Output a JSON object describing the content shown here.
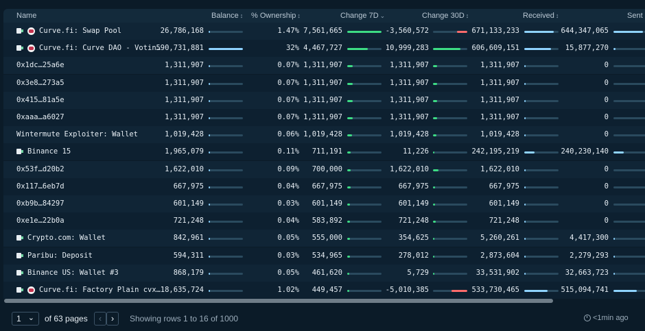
{
  "columns": {
    "name": "Name",
    "balance": "Balance",
    "ownership": "% Ownership",
    "change7d": "Change 7D",
    "change30d": "Change 30D",
    "received": "Received",
    "sent": "Sent"
  },
  "sort_icons": {
    "balance": "↕",
    "ownership": "↕",
    "change7d": "⌄",
    "change30d": "↕",
    "received": "↕"
  },
  "colors": {
    "positive": "#3ddc84",
    "negative": "#ff6b6b",
    "neutral": "#8fd3ff"
  },
  "rows": [
    {
      "name": "Curve.fi: Swap Pool",
      "tag": true,
      "curve": true,
      "balance": "26,786,168",
      "balance_frac": 0.045,
      "ownership": "1.47%",
      "change7d": "7,561,665",
      "c7_frac": 1.0,
      "c7_sign": "pos",
      "change30d": "-3,560,572",
      "c30_frac": 0.3,
      "c30_sign": "neg",
      "received": "671,133,233",
      "rec_frac": 0.85,
      "sent": "644,347,065",
      "sent_frac": 0.85
    },
    {
      "name": "Curve.fi: Curve DAO - Votin…",
      "tag": true,
      "curve": true,
      "balance": "590,731,881",
      "balance_frac": 1.0,
      "ownership": "32%",
      "change7d": "4,467,727",
      "c7_frac": 0.6,
      "c7_sign": "pos",
      "change30d": "10,999,283",
      "c30_frac": 0.8,
      "c30_sign": "pos",
      "received": "606,609,151",
      "rec_frac": 0.77,
      "sent": "15,877,270",
      "sent_frac": 0.06
    },
    {
      "name": "0x1dc…25a6e",
      "tag": false,
      "curve": false,
      "balance": "1,311,907",
      "balance_frac": 0.02,
      "ownership": "0.07%",
      "change7d": "1,311,907",
      "c7_frac": 0.16,
      "c7_sign": "pos",
      "change30d": "1,311,907",
      "c30_frac": 0.12,
      "c30_sign": "pos",
      "received": "1,311,907",
      "rec_frac": 0.01,
      "sent": "0",
      "sent_frac": 0
    },
    {
      "name": "0x3e8…273a5",
      "tag": false,
      "curve": false,
      "balance": "1,311,907",
      "balance_frac": 0.02,
      "ownership": "0.07%",
      "change7d": "1,311,907",
      "c7_frac": 0.16,
      "c7_sign": "pos",
      "change30d": "1,311,907",
      "c30_frac": 0.12,
      "c30_sign": "pos",
      "received": "1,311,907",
      "rec_frac": 0.01,
      "sent": "0",
      "sent_frac": 0
    },
    {
      "name": "0x415…81a5e",
      "tag": false,
      "curve": false,
      "balance": "1,311,907",
      "balance_frac": 0.02,
      "ownership": "0.07%",
      "change7d": "1,311,907",
      "c7_frac": 0.16,
      "c7_sign": "pos",
      "change30d": "1,311,907",
      "c30_frac": 0.12,
      "c30_sign": "pos",
      "received": "1,311,907",
      "rec_frac": 0.01,
      "sent": "0",
      "sent_frac": 0
    },
    {
      "name": "0xaaa…a6027",
      "tag": false,
      "curve": false,
      "balance": "1,311,907",
      "balance_frac": 0.02,
      "ownership": "0.07%",
      "change7d": "1,311,907",
      "c7_frac": 0.16,
      "c7_sign": "pos",
      "change30d": "1,311,907",
      "c30_frac": 0.12,
      "c30_sign": "pos",
      "received": "1,311,907",
      "rec_frac": 0.01,
      "sent": "0",
      "sent_frac": 0
    },
    {
      "name": "Wintermute Exploiter: Wallet",
      "tag": false,
      "curve": false,
      "balance": "1,019,428",
      "balance_frac": 0.015,
      "ownership": "0.06%",
      "change7d": "1,019,428",
      "c7_frac": 0.13,
      "c7_sign": "pos",
      "change30d": "1,019,428",
      "c30_frac": 0.1,
      "c30_sign": "pos",
      "received": "1,019,428",
      "rec_frac": 0.01,
      "sent": "0",
      "sent_frac": 0
    },
    {
      "name": "Binance 15",
      "tag": true,
      "curve": false,
      "balance": "1,965,079",
      "balance_frac": 0.03,
      "ownership": "0.11%",
      "change7d": "711,191",
      "c7_frac": 0.1,
      "c7_sign": "pos",
      "change30d": "11,226",
      "c30_frac": 0.01,
      "c30_sign": "pos",
      "received": "242,195,219",
      "rec_frac": 0.3,
      "sent": "240,230,140",
      "sent_frac": 0.3
    },
    {
      "name": "0x53f…d20b2",
      "tag": false,
      "curve": false,
      "balance": "1,622,010",
      "balance_frac": 0.025,
      "ownership": "0.09%",
      "change7d": "700,000",
      "c7_frac": 0.1,
      "c7_sign": "pos",
      "change30d": "1,622,010",
      "c30_frac": 0.15,
      "c30_sign": "pos",
      "received": "1,622,010",
      "rec_frac": 0.01,
      "sent": "0",
      "sent_frac": 0
    },
    {
      "name": "0x117…6eb7d",
      "tag": false,
      "curve": false,
      "balance": "667,975",
      "balance_frac": 0.01,
      "ownership": "0.04%",
      "change7d": "667,975",
      "c7_frac": 0.09,
      "c7_sign": "pos",
      "change30d": "667,975",
      "c30_frac": 0.06,
      "c30_sign": "pos",
      "received": "667,975",
      "rec_frac": 0.005,
      "sent": "0",
      "sent_frac": 0
    },
    {
      "name": "0xb9b…84297",
      "tag": false,
      "curve": false,
      "balance": "601,149",
      "balance_frac": 0.01,
      "ownership": "0.03%",
      "change7d": "601,149",
      "c7_frac": 0.08,
      "c7_sign": "pos",
      "change30d": "601,149",
      "c30_frac": 0.06,
      "c30_sign": "pos",
      "received": "601,149",
      "rec_frac": 0.005,
      "sent": "0",
      "sent_frac": 0
    },
    {
      "name": "0xe1e…22b0a",
      "tag": false,
      "curve": false,
      "balance": "721,248",
      "balance_frac": 0.012,
      "ownership": "0.04%",
      "change7d": "583,892",
      "c7_frac": 0.08,
      "c7_sign": "pos",
      "change30d": "721,248",
      "c30_frac": 0.07,
      "c30_sign": "pos",
      "received": "721,248",
      "rec_frac": 0.005,
      "sent": "0",
      "sent_frac": 0
    },
    {
      "name": "Crypto.com: Wallet",
      "tag": true,
      "curve": false,
      "balance": "842,961",
      "balance_frac": 0.013,
      "ownership": "0.05%",
      "change7d": "555,000",
      "c7_frac": 0.07,
      "c7_sign": "pos",
      "change30d": "354,625",
      "c30_frac": 0.04,
      "c30_sign": "pos",
      "received": "5,260,261",
      "rec_frac": 0.01,
      "sent": "4,417,300",
      "sent_frac": 0.01
    },
    {
      "name": "Paribu: Deposit",
      "tag": true,
      "curve": false,
      "balance": "594,311",
      "balance_frac": 0.01,
      "ownership": "0.03%",
      "change7d": "534,965",
      "c7_frac": 0.07,
      "c7_sign": "pos",
      "change30d": "278,012",
      "c30_frac": 0.03,
      "c30_sign": "pos",
      "received": "2,873,604",
      "rec_frac": 0.005,
      "sent": "2,279,293",
      "sent_frac": 0.005
    },
    {
      "name": "Binance US: Wallet #3",
      "tag": true,
      "curve": false,
      "balance": "868,179",
      "balance_frac": 0.013,
      "ownership": "0.05%",
      "change7d": "461,620",
      "c7_frac": 0.06,
      "c7_sign": "pos",
      "change30d": "5,729",
      "c30_frac": 0.01,
      "c30_sign": "pos",
      "received": "33,531,902",
      "rec_frac": 0.04,
      "sent": "32,663,723",
      "sent_frac": 0.04
    },
    {
      "name": "Curve.fi: Factory Plain cvx…",
      "tag": true,
      "curve": true,
      "balance": "18,635,724",
      "balance_frac": 0.03,
      "ownership": "1.02%",
      "change7d": "449,457",
      "c7_frac": 0.06,
      "c7_sign": "pos",
      "change30d": "-5,010,385",
      "c30_frac": 0.45,
      "c30_sign": "neg",
      "received": "533,730,465",
      "rec_frac": 0.68,
      "sent": "515,094,741",
      "sent_frac": 0.68
    }
  ],
  "footer": {
    "page_value": "1",
    "page_chevron": "⌄",
    "of_pages": "of 63 pages",
    "prev": "‹",
    "next": "›",
    "showing": "Showing rows 1 to 16 of 1000",
    "refresh": "<1min ago"
  }
}
